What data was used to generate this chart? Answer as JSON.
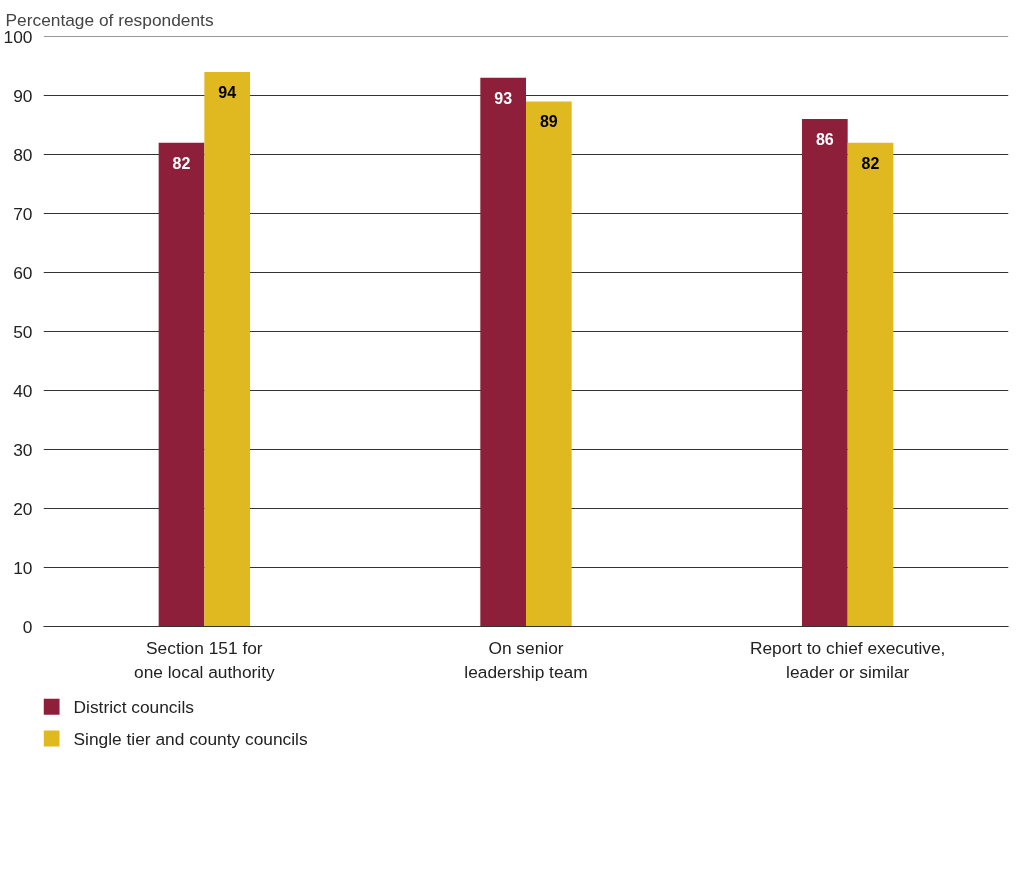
{
  "chart_data": {
    "type": "bar",
    "ylabel": "Percentage of respondents",
    "categories": [
      "Section 151 for\none local authority",
      "On senior\nleadership team",
      "Report to chief executive,\nleader or similar"
    ],
    "series": [
      {
        "name": "District councils",
        "color": "#8e1f3b",
        "values": [
          82,
          93,
          86
        ]
      },
      {
        "name": "Single tier and county councils",
        "color": "#e0b820",
        "values": [
          94,
          89,
          82
        ]
      }
    ],
    "ylim": [
      0,
      100
    ],
    "yticks": [
      0,
      10,
      20,
      30,
      40,
      50,
      60,
      70,
      80,
      90,
      100
    ],
    "grid": "y",
    "legend": "bottom left",
    "data_labels": true
  }
}
